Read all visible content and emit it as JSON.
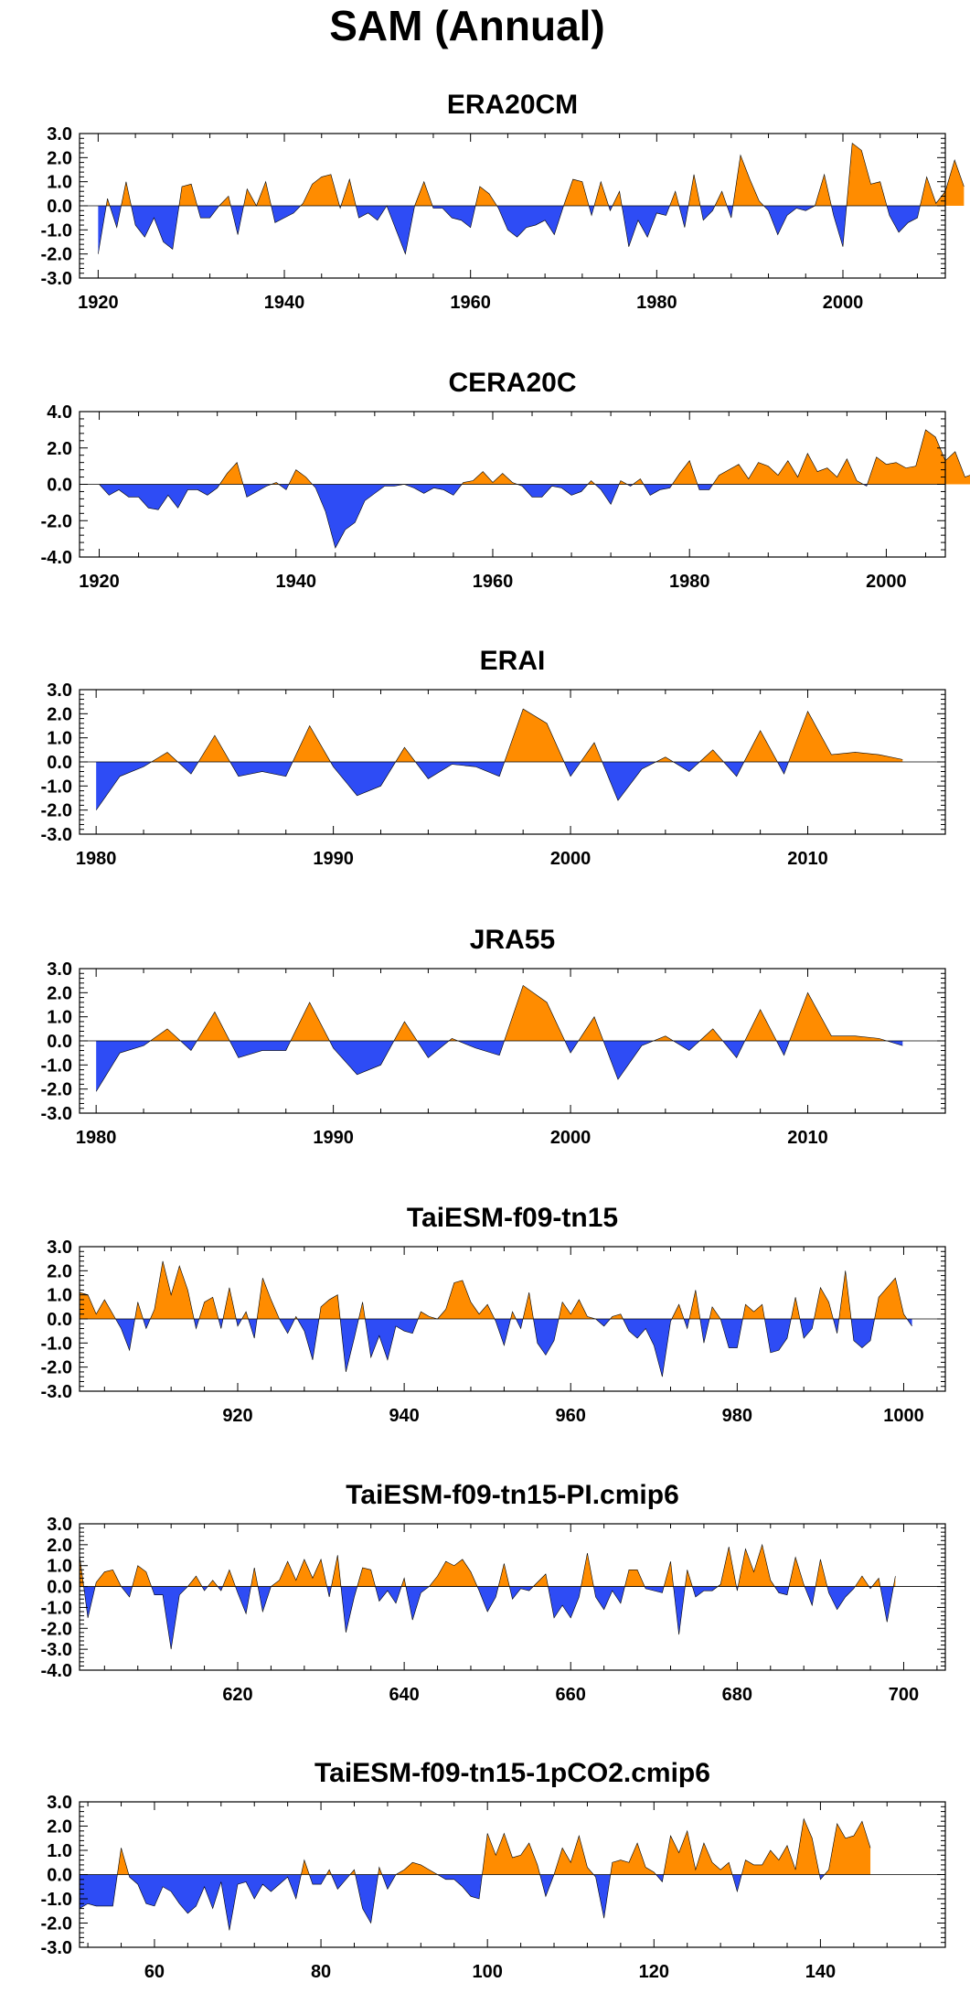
{
  "figure": {
    "title": "SAM (Annual)"
  },
  "colors": {
    "positive": "#ff8c00",
    "negative": "#2e4cf5",
    "axis": "#000000",
    "zero_line": "#000000"
  },
  "chart_data": [
    {
      "type": "area",
      "title": "ERA20CM",
      "xlim": [
        1918,
        2011
      ],
      "ylim": [
        -3.0,
        3.0
      ],
      "yticks": [
        3.0,
        2.0,
        1.0,
        0.0,
        -1.0,
        -2.0,
        -3.0
      ],
      "ytick_labels": [
        "3.0",
        "2.0",
        "1.0",
        "0.0",
        "-1.0",
        "-2.0",
        "-3.0"
      ],
      "xticks": [
        1920,
        1940,
        1960,
        1980,
        2000
      ],
      "xtick_labels": [
        "1920",
        "1940",
        "1960",
        "1980",
        "2000"
      ],
      "grid": false,
      "series": [
        {
          "x_start": 1920,
          "values": [
            -2.0,
            0.3,
            -0.9,
            1.0,
            -0.8,
            -1.3,
            -0.5,
            -1.5,
            -1.8,
            0.8,
            0.9,
            -0.5,
            -0.5,
            0.0,
            0.4,
            -1.2,
            0.7,
            0.0,
            1.0,
            -0.7,
            -0.5,
            -0.3,
            0.1,
            0.9,
            1.2,
            1.3,
            -0.1,
            1.1,
            -0.5,
            -0.3,
            -0.6,
            0.0,
            -1.0,
            -2.0,
            0.0,
            1.0,
            -0.1,
            -0.1,
            -0.5,
            -0.6,
            -0.9,
            0.8,
            0.5,
            -0.1,
            -1.0,
            -1.3,
            -0.9,
            -0.8,
            -0.6,
            -1.2,
            0.0,
            1.1,
            1.0,
            -0.4,
            1.0,
            -0.2,
            0.6,
            -1.7,
            -0.6,
            -1.3,
            -0.3,
            -0.4,
            0.6,
            -0.9,
            1.3,
            -0.6,
            -0.2,
            0.6,
            -0.5,
            2.1,
            1.1,
            0.2,
            -0.2,
            -1.2,
            -0.4,
            -0.1,
            -0.2,
            0.0,
            1.3,
            -0.4,
            -1.7,
            2.6,
            2.3,
            0.9,
            1.0,
            -0.4,
            -1.1,
            -0.7,
            -0.5,
            1.2,
            0.1,
            0.6,
            1.9,
            0.8
          ]
        }
      ]
    },
    {
      "type": "area",
      "title": "CERA20C",
      "xlim": [
        1918,
        2006
      ],
      "ylim": [
        -4.0,
        4.0
      ],
      "yticks": [
        4.0,
        2.0,
        0.0,
        -2.0,
        -4.0
      ],
      "ytick_labels": [
        "4.0",
        "2.0",
        "0.0",
        "-2.0",
        "-4.0"
      ],
      "xticks": [
        1920,
        1940,
        1960,
        1980,
        2000
      ],
      "xtick_labels": [
        "1920",
        "1940",
        "1960",
        "1980",
        "2000"
      ],
      "grid": false,
      "series": [
        {
          "x_start": 1920,
          "values": [
            0.0,
            -0.6,
            -0.3,
            -0.7,
            -0.7,
            -1.3,
            -1.4,
            -0.6,
            -1.3,
            -0.3,
            -0.3,
            -0.6,
            -0.2,
            0.6,
            1.2,
            -0.7,
            -0.4,
            -0.1,
            0.1,
            -0.3,
            0.8,
            0.4,
            -0.2,
            -1.5,
            -3.5,
            -2.5,
            -2.1,
            -0.9,
            -0.5,
            -0.1,
            -0.1,
            0.0,
            -0.2,
            -0.5,
            -0.2,
            -0.3,
            -0.6,
            0.1,
            0.2,
            0.7,
            0.1,
            0.6,
            0.1,
            -0.1,
            -0.7,
            -0.7,
            -0.1,
            -0.2,
            -0.6,
            -0.4,
            0.2,
            -0.3,
            -1.1,
            0.2,
            -0.1,
            0.3,
            -0.6,
            -0.3,
            -0.2,
            0.6,
            1.3,
            -0.3,
            -0.3,
            0.5,
            0.8,
            1.1,
            0.3,
            1.2,
            1.0,
            0.5,
            1.3,
            0.4,
            1.7,
            0.7,
            0.9,
            0.4,
            1.4,
            0.2,
            -0.1,
            1.5,
            1.1,
            1.2,
            0.9,
            1.0,
            3.0,
            2.6,
            1.3,
            1.8,
            0.4,
            0.6,
            1.2,
            0.1
          ]
        }
      ]
    },
    {
      "type": "area",
      "title": "ERAI",
      "xlim": [
        1979.3,
        2015.8
      ],
      "ylim": [
        -3.0,
        3.0
      ],
      "yticks": [
        3.0,
        2.0,
        1.0,
        0.0,
        -1.0,
        -2.0,
        -3.0
      ],
      "ytick_labels": [
        "3.0",
        "2.0",
        "1.0",
        "0.0",
        "-1.0",
        "-2.0",
        "-3.0"
      ],
      "xticks": [
        1980,
        1990,
        2000,
        2010
      ],
      "xtick_labels": [
        "1980",
        "1990",
        "2000",
        "2010"
      ],
      "grid": false,
      "series": [
        {
          "x_start": 1980,
          "values": [
            -2.0,
            -0.6,
            -0.2,
            0.4,
            -0.5,
            1.1,
            -0.6,
            -0.4,
            -0.6,
            1.5,
            -0.2,
            -1.4,
            -1.0,
            0.6,
            -0.7,
            -0.1,
            -0.2,
            -0.6,
            2.2,
            1.6,
            -0.6,
            0.8,
            -1.6,
            -0.3,
            0.2,
            -0.4,
            0.5,
            -0.6,
            1.3,
            -0.5,
            2.1,
            0.3,
            0.4,
            0.3,
            0.1
          ]
        }
      ]
    },
    {
      "type": "area",
      "title": "JRA55",
      "xlim": [
        1979.3,
        2015.8
      ],
      "ylim": [
        -3.0,
        3.0
      ],
      "yticks": [
        3.0,
        2.0,
        1.0,
        0.0,
        -1.0,
        -2.0,
        -3.0
      ],
      "ytick_labels": [
        "3.0",
        "2.0",
        "1.0",
        "0.0",
        "-1.0",
        "-2.0",
        "-3.0"
      ],
      "xticks": [
        1980,
        1990,
        2000,
        2010
      ],
      "xtick_labels": [
        "1980",
        "1990",
        "2000",
        "2010"
      ],
      "grid": false,
      "series": [
        {
          "x_start": 1980,
          "values": [
            -2.1,
            -0.5,
            -0.2,
            0.5,
            -0.4,
            1.2,
            -0.7,
            -0.4,
            -0.4,
            1.6,
            -0.3,
            -1.4,
            -1.0,
            0.8,
            -0.7,
            0.1,
            -0.3,
            -0.6,
            2.3,
            1.6,
            -0.5,
            1.0,
            -1.6,
            -0.2,
            0.2,
            -0.4,
            0.5,
            -0.7,
            1.3,
            -0.6,
            2.0,
            0.2,
            0.2,
            0.1,
            -0.2
          ]
        }
      ]
    },
    {
      "type": "area",
      "title": "TaiESM-f09-tn15",
      "xlim": [
        901,
        1005
      ],
      "ylim": [
        -3.0,
        3.0
      ],
      "yticks": [
        3.0,
        2.0,
        1.0,
        0.0,
        -1.0,
        -2.0,
        -3.0
      ],
      "ytick_labels": [
        "3.0",
        "2.0",
        "1.0",
        "0.0",
        "-1.0",
        "-2.0",
        "-3.0"
      ],
      "xticks": [
        920,
        940,
        960,
        980,
        1000
      ],
      "xtick_labels": [
        "920",
        "940",
        "960",
        "980",
        "1000"
      ],
      "grid": false,
      "series": [
        {
          "x_start": 901,
          "values": [
            1.1,
            1.0,
            0.2,
            0.8,
            0.2,
            -0.4,
            -1.3,
            0.7,
            -0.4,
            0.4,
            2.4,
            1.0,
            2.2,
            1.2,
            -0.4,
            0.7,
            0.9,
            -0.4,
            1.3,
            -0.3,
            0.3,
            -0.8,
            1.7,
            0.8,
            0.0,
            -0.6,
            0.1,
            -0.5,
            -1.7,
            0.5,
            0.8,
            1.0,
            -2.2,
            -0.8,
            0.7,
            -1.6,
            -0.7,
            -1.7,
            -0.3,
            -0.5,
            -0.6,
            0.3,
            0.1,
            0.0,
            0.4,
            1.5,
            1.6,
            0.7,
            0.2,
            0.6,
            -0.1,
            -1.1,
            0.3,
            -0.4,
            1.1,
            -1.0,
            -1.5,
            -0.9,
            0.7,
            0.2,
            0.8,
            0.1,
            0.0,
            -0.3,
            0.1,
            0.2,
            -0.5,
            -0.8,
            -0.4,
            -1.1,
            -2.4,
            -0.1,
            0.6,
            -0.4,
            1.2,
            -1.0,
            0.5,
            0.0,
            -1.2,
            -1.2,
            0.6,
            0.3,
            0.6,
            -1.4,
            -1.3,
            -0.8,
            0.9,
            -0.8,
            -0.4,
            1.3,
            0.7,
            -0.6,
            2.0,
            -0.9,
            -1.2,
            -0.9,
            0.9,
            1.3,
            1.7,
            0.2,
            -0.3
          ]
        }
      ]
    },
    {
      "type": "area",
      "title": "TaiESM-f09-tn15-PI.cmip6",
      "xlim": [
        601,
        705
      ],
      "ylim": [
        -4.0,
        3.0
      ],
      "yticks": [
        3.0,
        2.0,
        1.0,
        0.0,
        -1.0,
        -2.0,
        -3.0,
        -4.0
      ],
      "ytick_labels": [
        "3.0",
        "2.0",
        "1.0",
        "0.0",
        "-1.0",
        "-2.0",
        "-3.0",
        "-4.0"
      ],
      "xticks": [
        620,
        640,
        660,
        680,
        700
      ],
      "xtick_labels": [
        "620",
        "640",
        "660",
        "680",
        "700"
      ],
      "grid": false,
      "series": [
        {
          "x_start": 601,
          "values": [
            1.5,
            -1.5,
            0.2,
            0.7,
            0.8,
            0.0,
            -0.5,
            1.0,
            0.7,
            -0.4,
            -0.4,
            -3.0,
            -0.4,
            0.0,
            0.5,
            -0.2,
            0.3,
            -0.2,
            0.8,
            -0.3,
            -1.3,
            0.9,
            -1.2,
            0.0,
            0.3,
            1.2,
            0.3,
            1.3,
            0.4,
            1.3,
            -0.5,
            1.5,
            -2.2,
            -0.5,
            0.9,
            0.8,
            -0.7,
            -0.2,
            -0.8,
            0.4,
            -1.6,
            -0.3,
            0.0,
            0.5,
            1.2,
            1.0,
            1.3,
            0.7,
            -0.2,
            -1.2,
            -0.5,
            1.1,
            -0.6,
            -0.1,
            -0.2,
            0.2,
            0.6,
            -1.5,
            -0.9,
            -1.5,
            -0.5,
            1.6,
            -0.5,
            -1.1,
            -0.2,
            -0.8,
            0.8,
            0.8,
            -0.1,
            -0.2,
            -0.3,
            1.2,
            -2.3,
            0.8,
            -0.5,
            -0.2,
            -0.2,
            0.1,
            1.9,
            -0.2,
            1.8,
            0.7,
            2.0,
            0.3,
            -0.3,
            -0.4,
            1.4,
            0.1,
            -0.9,
            1.3,
            -0.3,
            -1.1,
            -0.5,
            -0.1,
            0.5,
            -0.1,
            0.4,
            -1.7,
            0.5
          ]
        }
      ]
    },
    {
      "type": "area",
      "title": "TaiESM-f09-tn15-1pCO2.cmip6",
      "xlim": [
        51,
        155
      ],
      "ylim": [
        -3.0,
        3.0
      ],
      "yticks": [
        3.0,
        2.0,
        1.0,
        0.0,
        -1.0,
        -2.0,
        -3.0
      ],
      "ytick_labels": [
        "3.0",
        "2.0",
        "1.0",
        "0.0",
        "-1.0",
        "-2.0",
        "-3.0"
      ],
      "xticks": [
        60,
        80,
        100,
        120,
        140
      ],
      "xtick_labels": [
        "60",
        "80",
        "100",
        "120",
        "140"
      ],
      "grid": false,
      "series": [
        {
          "x_start": 51,
          "values": [
            -1.4,
            -1.2,
            -1.3,
            -1.3,
            -1.3,
            1.1,
            -0.1,
            -0.4,
            -1.2,
            -1.3,
            -0.5,
            -0.7,
            -1.2,
            -1.6,
            -1.3,
            -0.5,
            -1.4,
            -0.3,
            -2.3,
            -0.4,
            -0.3,
            -1.0,
            -0.4,
            -0.7,
            -0.4,
            -0.1,
            -1.0,
            0.6,
            -0.4,
            -0.4,
            0.2,
            -0.6,
            -0.2,
            0.2,
            -1.4,
            -2.0,
            0.3,
            -0.6,
            0.0,
            0.2,
            0.5,
            0.4,
            0.2,
            0.0,
            -0.2,
            -0.2,
            -0.5,
            -0.9,
            -1.0,
            1.7,
            0.8,
            1.7,
            0.7,
            0.8,
            1.3,
            0.4,
            -0.9,
            0.0,
            1.1,
            0.5,
            1.6,
            0.3,
            -0.1,
            -1.8,
            0.5,
            0.6,
            0.5,
            1.3,
            0.3,
            0.1,
            -0.3,
            1.6,
            0.9,
            1.8,
            0.2,
            1.3,
            0.5,
            0.2,
            0.5,
            -0.7,
            0.6,
            0.4,
            0.4,
            1.0,
            0.6,
            1.2,
            0.2,
            2.3,
            1.5,
            -0.2,
            0.2,
            2.1,
            1.5,
            1.6,
            2.2,
            1.1
          ]
        }
      ]
    }
  ]
}
